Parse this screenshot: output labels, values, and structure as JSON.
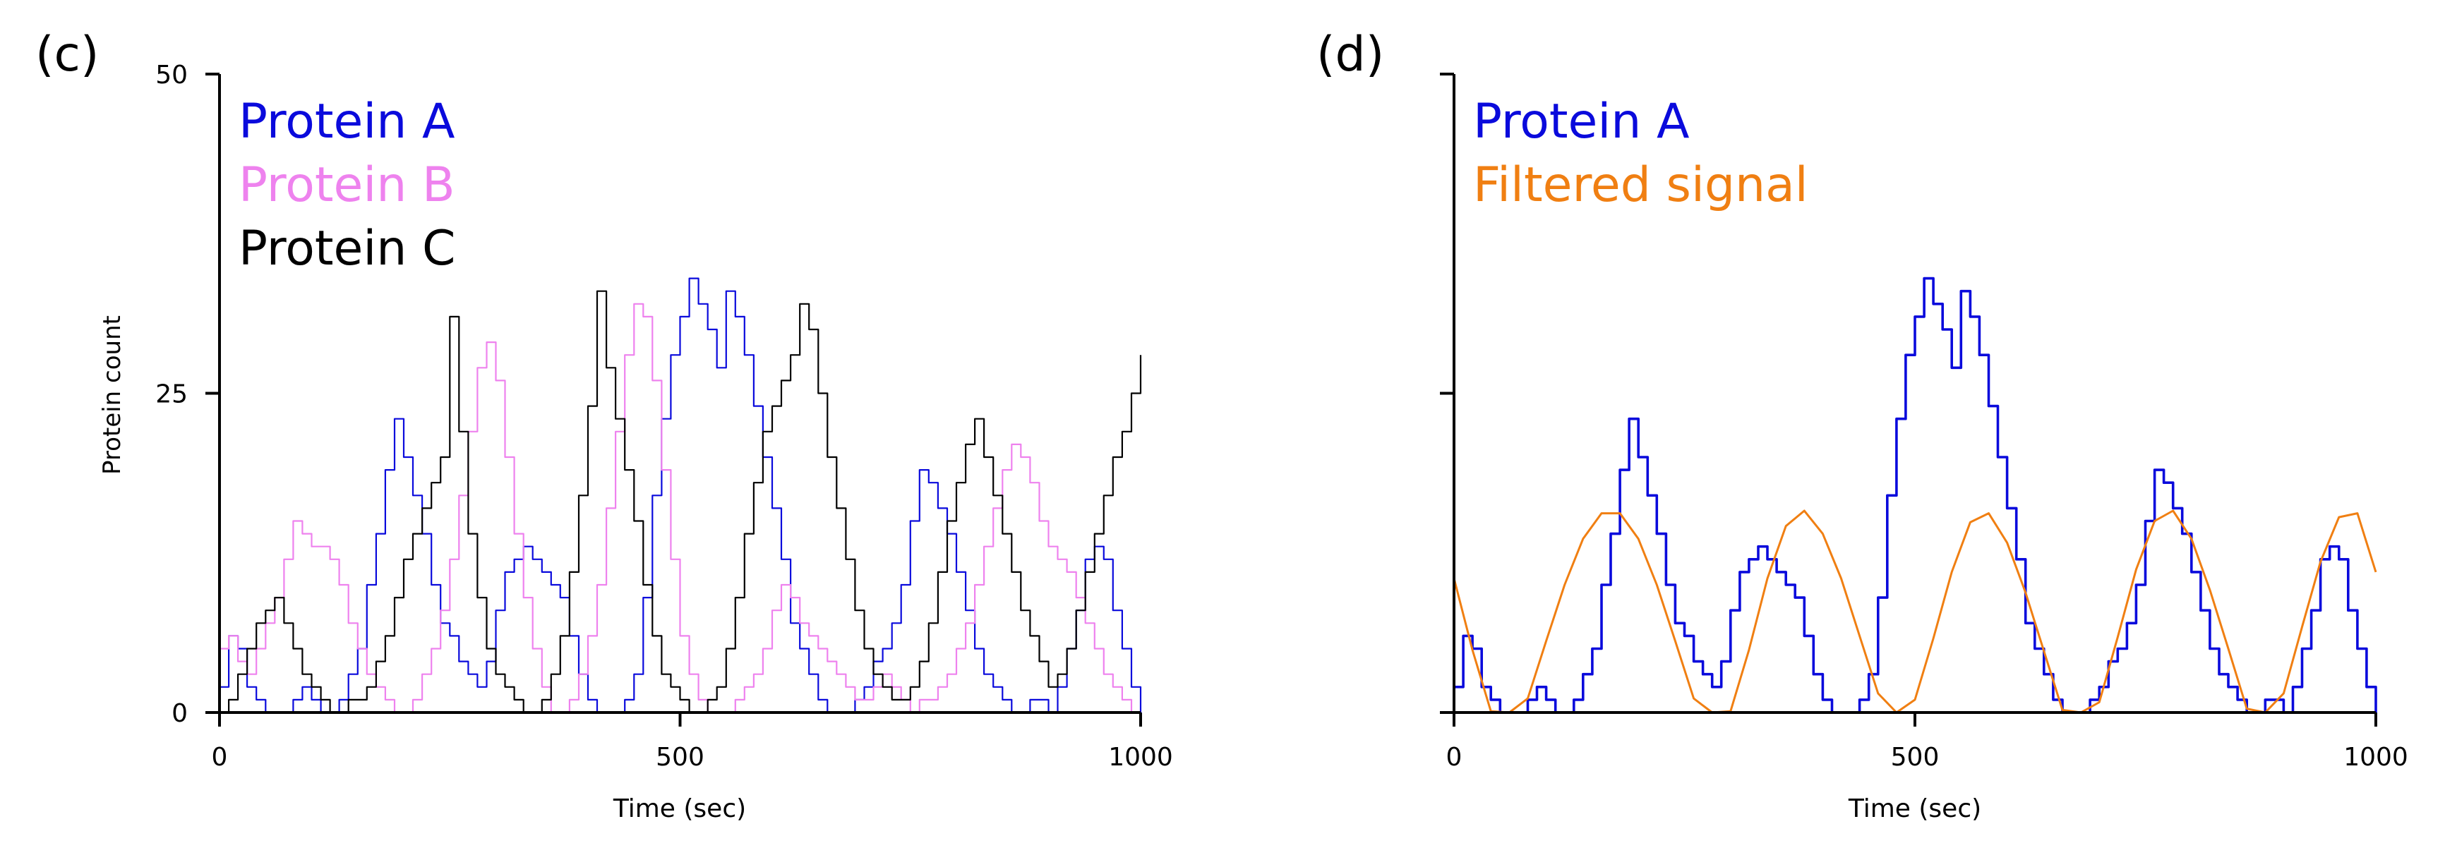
{
  "colors": {
    "protein_a": "#0a0adc",
    "protein_b": "#ee82ee",
    "protein_c": "#000000",
    "filtered": "#f07f12",
    "axis": "#000000"
  },
  "chart_data": [
    {
      "panel_label": "(c)",
      "type": "line",
      "title": "",
      "xlabel": "Time (sec)",
      "ylabel": "Protein count",
      "xlim": [
        0,
        1000
      ],
      "ylim": [
        0,
        50
      ],
      "xticks": [
        0,
        500,
        1000
      ],
      "yticks": [
        0,
        25,
        50
      ],
      "xtick_labels": [
        "0",
        "500",
        "1000"
      ],
      "ytick_labels": [
        "0",
        "25",
        "50"
      ],
      "legend": {
        "placement": "top-left"
      },
      "grid": false,
      "series": [
        {
          "name": "Protein A",
          "color_key": "protein_a",
          "step": true,
          "x": [
            0,
            10,
            20,
            30,
            40,
            50,
            60,
            70,
            80,
            90,
            100,
            110,
            120,
            130,
            140,
            150,
            160,
            170,
            180,
            190,
            200,
            210,
            220,
            230,
            240,
            250,
            260,
            270,
            280,
            290,
            300,
            310,
            320,
            330,
            340,
            350,
            360,
            370,
            380,
            390,
            400,
            410,
            420,
            430,
            440,
            450,
            460,
            470,
            480,
            490,
            500,
            510,
            520,
            530,
            540,
            550,
            560,
            570,
            580,
            590,
            600,
            610,
            620,
            630,
            640,
            650,
            660,
            670,
            680,
            690,
            700,
            710,
            720,
            730,
            740,
            750,
            760,
            770,
            780,
            790,
            800,
            810,
            820,
            830,
            840,
            850,
            860,
            870,
            880,
            890,
            900,
            910,
            920,
            930,
            940,
            950,
            960,
            970,
            980,
            990,
            1000
          ],
          "y": [
            2,
            6,
            5,
            2,
            1,
            0,
            0,
            0,
            1,
            2,
            1,
            0,
            0,
            1,
            3,
            5,
            10,
            14,
            19,
            23,
            20,
            17,
            14,
            10,
            7,
            6,
            4,
            3,
            2,
            4,
            8,
            11,
            12,
            13,
            12,
            11,
            10,
            9,
            6,
            3,
            1,
            0,
            0,
            0,
            1,
            3,
            9,
            17,
            23,
            28,
            31,
            34,
            32,
            30,
            27,
            33,
            31,
            28,
            24,
            20,
            16,
            12,
            7,
            5,
            3,
            1,
            0,
            0,
            0,
            1,
            2,
            4,
            5,
            7,
            10,
            15,
            19,
            18,
            16,
            14,
            11,
            8,
            5,
            3,
            2,
            1,
            0,
            0,
            1,
            1,
            0,
            2,
            5,
            8,
            12,
            13,
            12,
            8,
            5,
            2,
            0
          ]
        },
        {
          "name": "Protein B",
          "color_key": "protein_b",
          "step": true,
          "x": [
            0,
            10,
            20,
            30,
            40,
            50,
            60,
            70,
            80,
            90,
            100,
            110,
            120,
            130,
            140,
            150,
            160,
            170,
            180,
            190,
            200,
            210,
            220,
            230,
            240,
            250,
            260,
            270,
            280,
            290,
            300,
            310,
            320,
            330,
            340,
            350,
            360,
            370,
            380,
            390,
            400,
            410,
            420,
            430,
            440,
            450,
            460,
            470,
            480,
            490,
            500,
            510,
            520,
            530,
            540,
            550,
            560,
            570,
            580,
            590,
            600,
            610,
            620,
            630,
            640,
            650,
            660,
            670,
            680,
            690,
            700,
            710,
            720,
            730,
            740,
            750,
            760,
            770,
            780,
            790,
            800,
            810,
            820,
            830,
            840,
            850,
            860,
            870,
            880,
            890,
            900,
            910,
            920,
            930,
            940,
            950,
            960,
            970,
            980,
            990,
            1000
          ],
          "y": [
            5,
            6,
            4,
            3,
            5,
            7,
            9,
            12,
            15,
            14,
            13,
            13,
            12,
            10,
            7,
            5,
            3,
            2,
            1,
            0,
            0,
            1,
            3,
            5,
            8,
            12,
            17,
            22,
            27,
            29,
            26,
            20,
            14,
            9,
            5,
            2,
            0,
            0,
            1,
            3,
            6,
            10,
            16,
            22,
            28,
            32,
            31,
            26,
            19,
            12,
            6,
            3,
            1,
            0,
            0,
            0,
            1,
            2,
            3,
            5,
            8,
            10,
            9,
            7,
            6,
            5,
            4,
            3,
            2,
            1,
            1,
            2,
            3,
            2,
            1,
            0,
            1,
            1,
            2,
            3,
            5,
            7,
            10,
            13,
            16,
            19,
            21,
            20,
            18,
            15,
            13,
            12,
            11,
            9,
            7,
            5,
            3,
            2,
            1,
            0,
            0
          ]
        },
        {
          "name": "Protein C",
          "color_key": "protein_c",
          "step": true,
          "x": [
            0,
            10,
            20,
            30,
            40,
            50,
            60,
            70,
            80,
            90,
            100,
            110,
            120,
            130,
            140,
            150,
            160,
            170,
            180,
            190,
            200,
            210,
            220,
            230,
            240,
            250,
            260,
            270,
            280,
            290,
            300,
            310,
            320,
            330,
            340,
            350,
            360,
            370,
            380,
            390,
            400,
            410,
            420,
            430,
            440,
            450,
            460,
            470,
            480,
            490,
            500,
            510,
            520,
            530,
            540,
            550,
            560,
            570,
            580,
            590,
            600,
            610,
            620,
            630,
            640,
            650,
            660,
            670,
            680,
            690,
            700,
            710,
            720,
            730,
            740,
            750,
            760,
            770,
            780,
            790,
            800,
            810,
            820,
            830,
            840,
            850,
            860,
            870,
            880,
            890,
            900,
            910,
            920,
            930,
            940,
            950,
            960,
            970,
            980,
            990,
            1000
          ],
          "y": [
            0,
            1,
            3,
            5,
            7,
            8,
            9,
            7,
            5,
            3,
            2,
            1,
            0,
            0,
            1,
            1,
            2,
            4,
            6,
            9,
            12,
            14,
            16,
            18,
            20,
            31,
            22,
            14,
            9,
            5,
            3,
            2,
            1,
            0,
            0,
            1,
            3,
            6,
            11,
            17,
            24,
            33,
            27,
            23,
            19,
            15,
            10,
            6,
            3,
            2,
            1,
            0,
            0,
            1,
            2,
            5,
            9,
            14,
            18,
            22,
            24,
            26,
            28,
            32,
            30,
            25,
            20,
            16,
            12,
            8,
            5,
            3,
            2,
            1,
            1,
            2,
            4,
            7,
            11,
            15,
            18,
            21,
            23,
            20,
            17,
            14,
            11,
            8,
            6,
            4,
            2,
            3,
            5,
            8,
            11,
            14,
            17,
            20,
            22,
            25,
            28
          ]
        }
      ]
    },
    {
      "panel_label": "(d)",
      "type": "line",
      "title": "",
      "xlabel": "Time (sec)",
      "ylabel": "",
      "xlim": [
        0,
        1000
      ],
      "ylim": [
        0,
        50
      ],
      "xticks": [
        0,
        500,
        1000
      ],
      "yticks": [
        0,
        25,
        50
      ],
      "xtick_labels": [
        "0",
        "500",
        "1000"
      ],
      "ytick_labels": [],
      "legend": {
        "placement": "top-left"
      },
      "grid": false,
      "series": [
        {
          "name": "Protein A",
          "color_key": "protein_a",
          "step": true,
          "x": [
            0,
            10,
            20,
            30,
            40,
            50,
            60,
            70,
            80,
            90,
            100,
            110,
            120,
            130,
            140,
            150,
            160,
            170,
            180,
            190,
            200,
            210,
            220,
            230,
            240,
            250,
            260,
            270,
            280,
            290,
            300,
            310,
            320,
            330,
            340,
            350,
            360,
            370,
            380,
            390,
            400,
            410,
            420,
            430,
            440,
            450,
            460,
            470,
            480,
            490,
            500,
            510,
            520,
            530,
            540,
            550,
            560,
            570,
            580,
            590,
            600,
            610,
            620,
            630,
            640,
            650,
            660,
            670,
            680,
            690,
            700,
            710,
            720,
            730,
            740,
            750,
            760,
            770,
            780,
            790,
            800,
            810,
            820,
            830,
            840,
            850,
            860,
            870,
            880,
            890,
            900,
            910,
            920,
            930,
            940,
            950,
            960,
            970,
            980,
            990,
            1000
          ],
          "y": [
            2,
            6,
            5,
            2,
            1,
            0,
            0,
            0,
            1,
            2,
            1,
            0,
            0,
            1,
            3,
            5,
            10,
            14,
            19,
            23,
            20,
            17,
            14,
            10,
            7,
            6,
            4,
            3,
            2,
            4,
            8,
            11,
            12,
            13,
            12,
            11,
            10,
            9,
            6,
            3,
            1,
            0,
            0,
            0,
            1,
            3,
            9,
            17,
            23,
            28,
            31,
            34,
            32,
            30,
            27,
            33,
            31,
            28,
            24,
            20,
            16,
            12,
            7,
            5,
            3,
            1,
            0,
            0,
            0,
            1,
            2,
            4,
            5,
            7,
            10,
            15,
            19,
            18,
            16,
            14,
            11,
            8,
            5,
            3,
            2,
            1,
            0,
            0,
            1,
            1,
            0,
            2,
            5,
            8,
            12,
            13,
            12,
            8,
            5,
            2,
            0
          ]
        },
        {
          "name": "Filtered signal",
          "color_key": "filtered",
          "step": false,
          "x": [
            0,
            20,
            40,
            60,
            80,
            100,
            120,
            140,
            160,
            180,
            200,
            220,
            240,
            260,
            280,
            300,
            320,
            340,
            360,
            380,
            400,
            420,
            440,
            460,
            480,
            500,
            520,
            540,
            560,
            580,
            600,
            620,
            640,
            660,
            680,
            700,
            720,
            740,
            760,
            780,
            800,
            820,
            840,
            860,
            880,
            900,
            920,
            940,
            960,
            980,
            1000
          ],
          "y": [
            10.5,
            4.9,
            0.1,
            -3.1,
            1.1,
            5.6,
            10.0,
            13.6,
            15.6,
            15.6,
            13.6,
            10.0,
            5.6,
            1.1,
            -3.1,
            0.1,
            4.9,
            10.5,
            14.6,
            15.8,
            14.0,
            10.5,
            6.0,
            1.5,
            -2.7,
            1.0,
            5.8,
            11.0,
            14.9,
            15.6,
            13.3,
            9.4,
            4.8,
            0.2,
            -3.3,
            0.8,
            5.9,
            11.2,
            15.0,
            15.8,
            13.6,
            9.6,
            5.0,
            0.3,
            -3.2,
            1.5,
            6.7,
            11.8,
            15.3,
            15.6,
            11.0
          ]
        }
      ]
    }
  ]
}
